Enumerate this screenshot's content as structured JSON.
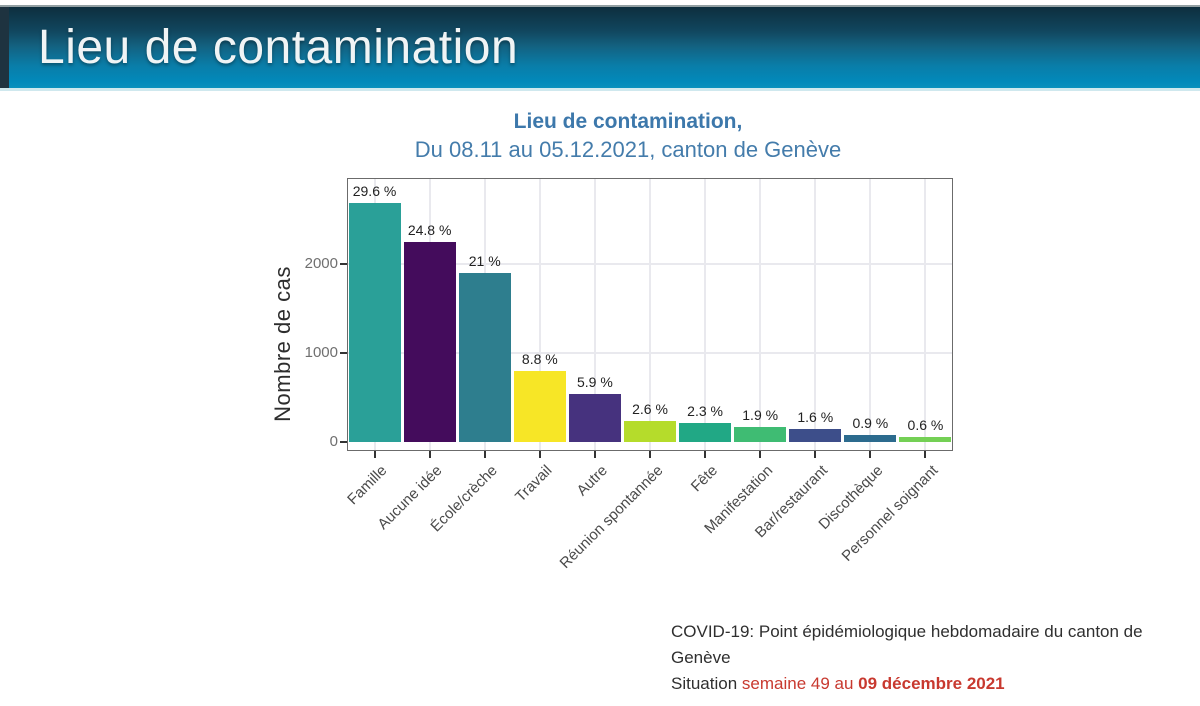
{
  "banner": {
    "title": "Lieu de contamination"
  },
  "chart_data": {
    "type": "bar",
    "title": "Lieu de contamination,",
    "subtitle": "Du 08.11 au 05.12.2021, canton de Genève",
    "ylabel": "Nombre de cas",
    "xlabel": "",
    "categories": [
      "Famille",
      "Aucune idée",
      "École/crèche",
      "Travail",
      "Autre",
      "Réunion spontannée",
      "Fête",
      "Manifestation",
      "Bar/restaurant",
      "Discothèque",
      "Personnel soignant"
    ],
    "percent_labels": [
      "29.6 %",
      "24.8 %",
      "21 %",
      "8.8 %",
      "5.9 %",
      "2.6 %",
      "2.3 %",
      "1.9 %",
      "1.6 %",
      "0.9 %",
      "0.6 %"
    ],
    "values_percent": [
      29.6,
      24.8,
      21,
      8.8,
      5.9,
      2.6,
      2.3,
      1.9,
      1.6,
      0.9,
      0.6
    ],
    "values_cases_est": [
      2682,
      2247,
      1903,
      797,
      535,
      236,
      208,
      172,
      145,
      82,
      54
    ],
    "yticks": [
      0,
      1000,
      2000
    ],
    "ylim": [
      0,
      2950
    ],
    "grid": true,
    "legend": false,
    "bar_colors": [
      "#2aa098",
      "#440c5c",
      "#2e7e8e",
      "#f7e626",
      "#46327e",
      "#b5dc2b",
      "#21a885",
      "#3fbc73",
      "#3d4e8a",
      "#2c6b8e",
      "#74d055"
    ]
  },
  "footer": {
    "line1": "COVID-19: Point épidémiologique hebdomadaire du canton de Genève",
    "line2_prefix": "Situation ",
    "line2_red": "semaine 49 au ",
    "line2_red_bold": "09 décembre 2021"
  },
  "colors": {
    "banner_gradient_top": "#0d2e3e",
    "banner_gradient_bottom": "#0990bd",
    "chart_title_blue": "#3d78ab",
    "footer_red": "#c8392f"
  }
}
